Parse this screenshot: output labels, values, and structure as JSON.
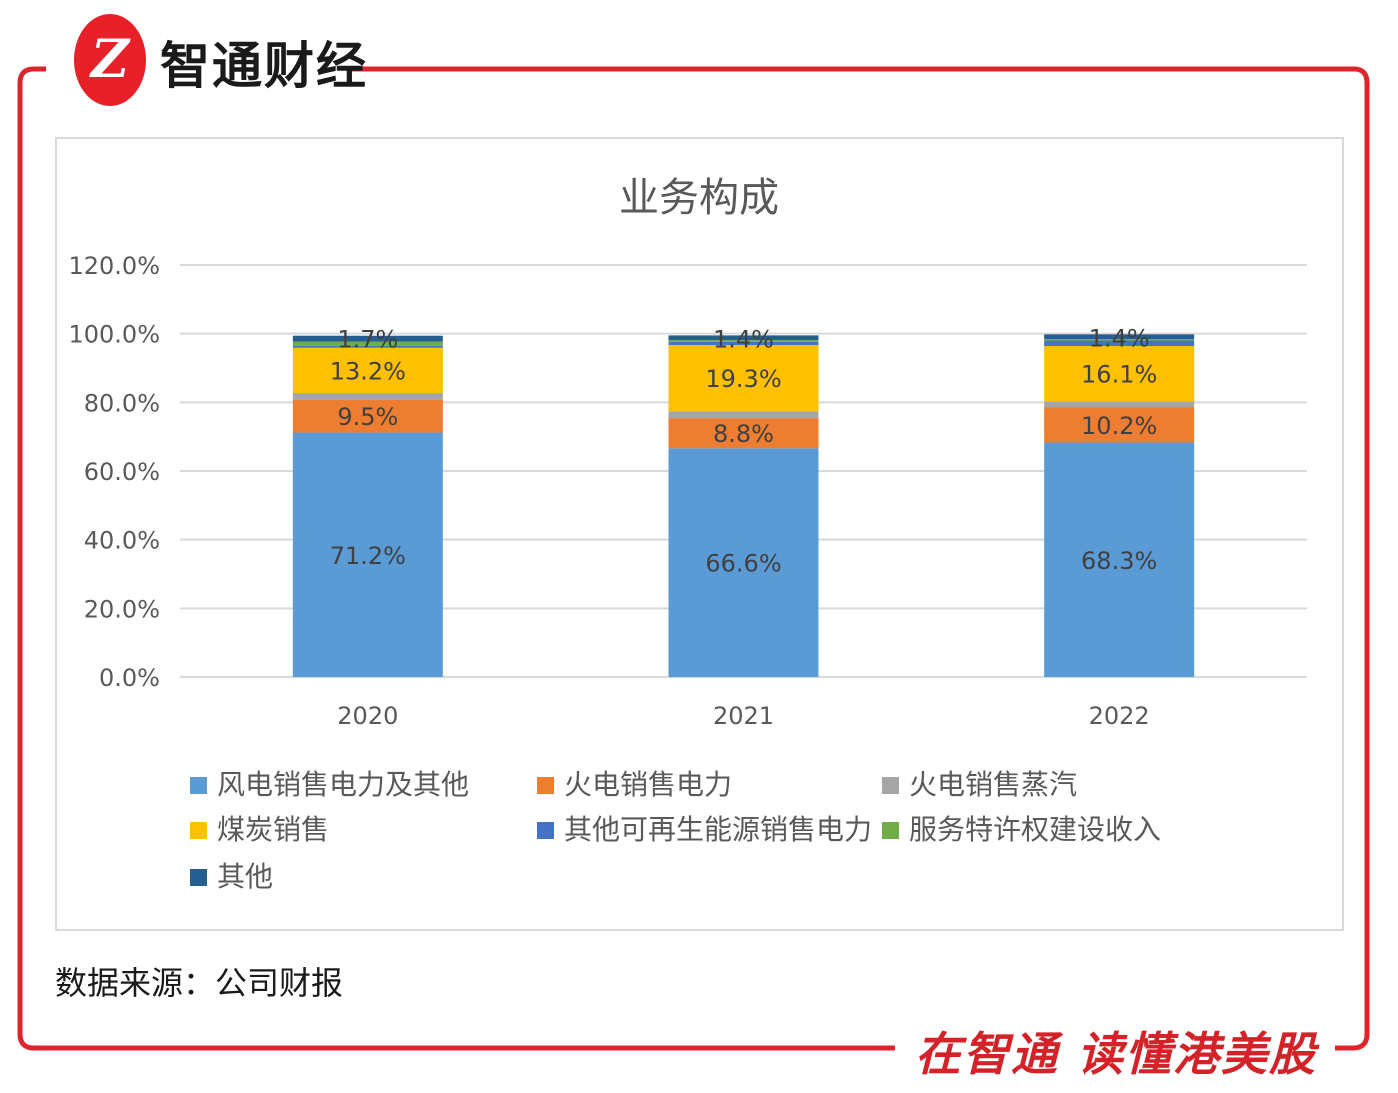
{
  "brand": {
    "logo_text": "Z",
    "name": "智通财经"
  },
  "footer": {
    "source": "数据来源：公司财报",
    "slogan": "在智通 读懂港美股"
  },
  "colors": {
    "frame": "#e0242c",
    "grid": "#d9d9d9"
  },
  "chart_data": {
    "type": "bar",
    "stacked": true,
    "title": "业务构成",
    "categories": [
      "2020",
      "2021",
      "2022"
    ],
    "ylim": [
      0,
      120
    ],
    "yticks": [
      "0.0%",
      "20.0%",
      "40.0%",
      "60.0%",
      "80.0%",
      "100.0%",
      "120.0%"
    ],
    "ytick_values": [
      0,
      20,
      40,
      60,
      80,
      100,
      120
    ],
    "legend_position": "bottom",
    "series": [
      {
        "name": "风电销售电力及其他",
        "color": "#5b9bd5",
        "values": [
          71.2,
          66.6,
          68.3
        ],
        "labels": [
          "71.2%",
          "66.6%",
          "68.3%"
        ]
      },
      {
        "name": "火电销售电力",
        "color": "#ed7d31",
        "values": [
          9.5,
          8.8,
          10.2
        ],
        "labels": [
          "9.5%",
          "8.8%",
          "10.2%"
        ]
      },
      {
        "name": "火电销售蒸汽",
        "color": "#a5a5a5",
        "values": [
          2.0,
          2.0,
          1.8
        ],
        "labels": [
          "",
          "",
          ""
        ]
      },
      {
        "name": "煤炭销售",
        "color": "#ffc000",
        "values": [
          13.2,
          19.3,
          16.1
        ],
        "labels": [
          "13.2%",
          "19.3%",
          "16.1%"
        ]
      },
      {
        "name": "其他可再生能源销售电力",
        "color": "#4472c4",
        "values": [
          0.6,
          0.9,
          1.6
        ],
        "labels": [
          "",
          "",
          ""
        ]
      },
      {
        "name": "服务特许权建设收入",
        "color": "#70ad47",
        "values": [
          1.2,
          0.5,
          0.4
        ],
        "labels": [
          "",
          "",
          ""
        ]
      },
      {
        "name": "其他",
        "color": "#255e91",
        "values": [
          1.7,
          1.4,
          1.4
        ],
        "labels": [
          "1.7%",
          "1.4%",
          "1.4%"
        ]
      }
    ]
  }
}
